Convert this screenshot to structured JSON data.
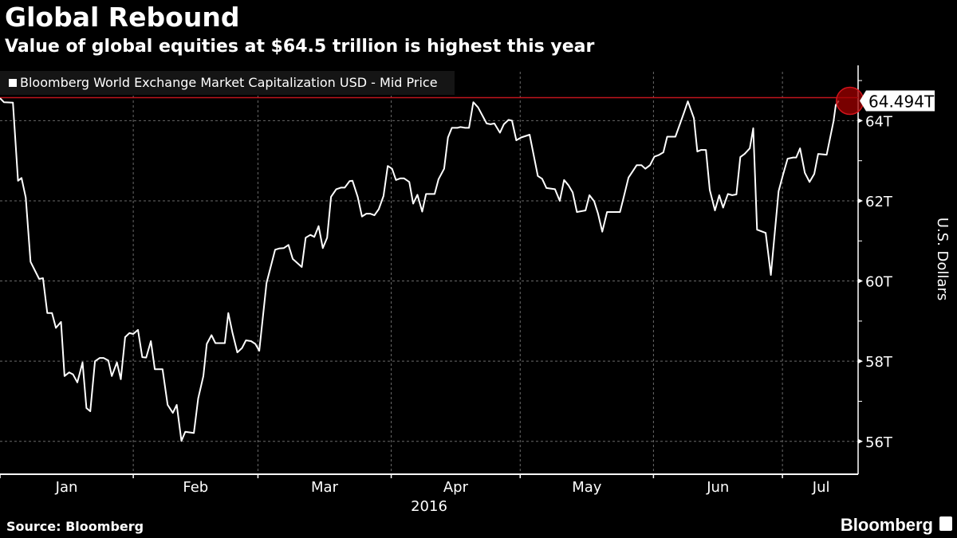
{
  "header": {
    "title": "Global Rebound",
    "subtitle": "Value of global equities at $64.5 trillion is highest this year"
  },
  "footer": {
    "source": "Source: Bloomberg",
    "logo": "Bloomberg"
  },
  "colors": {
    "background": "#000000",
    "line": "#ffffff",
    "highlight": "#c0141c",
    "legend_bg": "#151515",
    "grid": "#666666"
  },
  "chart_data": {
    "type": "line",
    "title": "Global Rebound",
    "subtitle": "Value of global equities at $64.5 trillion is highest this year",
    "legend": [
      "Bloomberg World Exchange Market Capitalization USD - Mid Price"
    ],
    "legend_placement": "top-left",
    "xlabel": "2016",
    "ylabel": "U.S. Dollars",
    "x_unit": "day of year 2016 (0 = Jan 1)",
    "xlim": [
      0,
      199.6
    ],
    "ylim": [
      55.18,
      65.22
    ],
    "month_starts": [
      0,
      31,
      60,
      91,
      121,
      152,
      182
    ],
    "x_tick_labels": [
      "Jan",
      "Feb",
      "Mar",
      "Apr",
      "May",
      "Jun",
      "Jul"
    ],
    "x_tick_label_days": [
      15.5,
      45.5,
      75.5,
      106,
      136.5,
      167,
      191
    ],
    "y_ticks": [
      56,
      58,
      60,
      62,
      64
    ],
    "y_tick_labels": [
      "56T",
      "58T",
      "60T",
      "62T",
      "64T"
    ],
    "y_minor_ticks": [
      57,
      59,
      61,
      63,
      65
    ],
    "grid": true,
    "last_value": 64.494,
    "last_value_label": "64.494T",
    "series": [
      {
        "name": "Bloomberg World Exchange Market Capitalization USD - Mid Price",
        "points": [
          [
            0.0,
            64.56
          ],
          [
            0.9,
            64.46
          ],
          [
            3.0,
            64.45
          ],
          [
            4.2,
            62.5
          ],
          [
            5.0,
            62.57
          ],
          [
            6.0,
            62.08
          ],
          [
            7.1,
            60.48
          ],
          [
            9.1,
            60.05
          ],
          [
            10.0,
            60.07
          ],
          [
            11.0,
            59.2
          ],
          [
            12.1,
            59.2
          ],
          [
            13.0,
            58.83
          ],
          [
            14.2,
            58.98
          ],
          [
            15.0,
            57.63
          ],
          [
            16.1,
            57.72
          ],
          [
            17.0,
            57.67
          ],
          [
            18.0,
            57.47
          ],
          [
            19.2,
            57.97
          ],
          [
            20.1,
            56.83
          ],
          [
            21.0,
            56.75
          ],
          [
            22.1,
            58.0
          ],
          [
            23.2,
            58.08
          ],
          [
            24.1,
            58.08
          ],
          [
            25.2,
            58.02
          ],
          [
            26.0,
            57.63
          ],
          [
            27.2,
            57.97
          ],
          [
            28.1,
            57.55
          ],
          [
            29.1,
            58.6
          ],
          [
            30.1,
            58.7
          ],
          [
            31.0,
            58.68
          ],
          [
            32.1,
            58.78
          ],
          [
            33.1,
            58.1
          ],
          [
            34.0,
            58.09
          ],
          [
            35.1,
            58.5
          ],
          [
            36.0,
            57.8
          ],
          [
            37.8,
            57.8
          ],
          [
            39.0,
            56.91
          ],
          [
            40.2,
            56.71
          ],
          [
            41.1,
            56.91
          ],
          [
            42.2,
            56.01
          ],
          [
            43.1,
            56.24
          ],
          [
            45.1,
            56.21
          ],
          [
            46.1,
            57.07
          ],
          [
            47.3,
            57.63
          ],
          [
            48.1,
            58.43
          ],
          [
            49.2,
            58.65
          ],
          [
            50.1,
            58.45
          ],
          [
            52.3,
            58.45
          ],
          [
            53.1,
            59.2
          ],
          [
            54.1,
            58.7
          ],
          [
            55.2,
            58.22
          ],
          [
            56.3,
            58.33
          ],
          [
            57.2,
            58.52
          ],
          [
            58.4,
            58.5
          ],
          [
            59.4,
            58.43
          ],
          [
            60.3,
            58.26
          ],
          [
            62.0,
            59.95
          ],
          [
            64.0,
            60.78
          ],
          [
            64.9,
            60.81
          ],
          [
            66.0,
            60.82
          ],
          [
            67.1,
            60.9
          ],
          [
            68.1,
            60.55
          ],
          [
            70.2,
            60.35
          ],
          [
            71.1,
            61.08
          ],
          [
            72.2,
            61.15
          ],
          [
            73.1,
            61.1
          ],
          [
            74.1,
            61.37
          ],
          [
            75.1,
            60.82
          ],
          [
            76.1,
            61.08
          ],
          [
            77.0,
            62.1
          ],
          [
            78.2,
            62.29
          ],
          [
            79.3,
            62.33
          ],
          [
            80.2,
            62.33
          ],
          [
            81.3,
            62.49
          ],
          [
            82.0,
            62.5
          ],
          [
            83.2,
            62.1
          ],
          [
            84.2,
            61.61
          ],
          [
            85.2,
            61.68
          ],
          [
            86.1,
            61.68
          ],
          [
            87.1,
            61.64
          ],
          [
            88.1,
            61.79
          ],
          [
            89.2,
            62.12
          ],
          [
            90.2,
            62.87
          ],
          [
            91.2,
            62.8
          ],
          [
            92.1,
            62.52
          ],
          [
            93.1,
            62.56
          ],
          [
            94.0,
            62.56
          ],
          [
            95.2,
            62.47
          ],
          [
            96.1,
            61.93
          ],
          [
            97.1,
            62.15
          ],
          [
            98.2,
            61.73
          ],
          [
            99.1,
            62.17
          ],
          [
            101.1,
            62.17
          ],
          [
            102.0,
            62.54
          ],
          [
            103.3,
            62.8
          ],
          [
            104.2,
            63.58
          ],
          [
            105.1,
            63.82
          ],
          [
            106.4,
            63.82
          ],
          [
            107.1,
            63.84
          ],
          [
            108.2,
            63.82
          ],
          [
            109.1,
            63.82
          ],
          [
            110.1,
            64.46
          ],
          [
            111.2,
            64.33
          ],
          [
            113.2,
            63.93
          ],
          [
            114.1,
            63.91
          ],
          [
            115.0,
            63.93
          ],
          [
            116.3,
            63.7
          ],
          [
            117.2,
            63.91
          ],
          [
            118.3,
            64.02
          ],
          [
            119.1,
            64.0
          ],
          [
            120.1,
            63.51
          ],
          [
            121.2,
            63.58
          ],
          [
            123.2,
            63.65
          ],
          [
            125.1,
            62.62
          ],
          [
            126.1,
            62.55
          ],
          [
            127.1,
            62.32
          ],
          [
            129.1,
            62.29
          ],
          [
            130.2,
            62.0
          ],
          [
            131.2,
            62.52
          ],
          [
            132.2,
            62.39
          ],
          [
            133.2,
            62.21
          ],
          [
            134.2,
            61.72
          ],
          [
            136.2,
            61.76
          ],
          [
            137.1,
            62.14
          ],
          [
            138.2,
            61.99
          ],
          [
            139.1,
            61.68
          ],
          [
            140.1,
            61.23
          ],
          [
            141.2,
            61.72
          ],
          [
            144.2,
            61.72
          ],
          [
            145.2,
            62.14
          ],
          [
            146.2,
            62.58
          ],
          [
            147.2,
            62.74
          ],
          [
            148.1,
            62.89
          ],
          [
            149.2,
            62.89
          ],
          [
            150.1,
            62.8
          ],
          [
            151.2,
            62.89
          ],
          [
            152.2,
            63.1
          ],
          [
            153.2,
            63.14
          ],
          [
            154.3,
            63.21
          ],
          [
            155.2,
            63.6
          ],
          [
            157.1,
            63.6
          ],
          [
            158.3,
            63.96
          ],
          [
            159.2,
            64.23
          ],
          [
            160.0,
            64.48
          ],
          [
            161.4,
            64.06
          ],
          [
            162.2,
            63.23
          ],
          [
            163.1,
            63.27
          ],
          [
            164.2,
            63.27
          ],
          [
            165.1,
            62.27
          ],
          [
            166.3,
            61.76
          ],
          [
            167.3,
            62.14
          ],
          [
            168.2,
            61.83
          ],
          [
            169.3,
            62.17
          ],
          [
            170.3,
            62.14
          ],
          [
            171.3,
            62.16
          ],
          [
            172.2,
            63.09
          ],
          [
            173.2,
            63.17
          ],
          [
            174.4,
            63.31
          ],
          [
            175.2,
            63.81
          ],
          [
            176.1,
            61.28
          ],
          [
            178.1,
            61.2
          ],
          [
            179.3,
            60.15
          ],
          [
            181.1,
            62.24
          ],
          [
            182.1,
            62.64
          ],
          [
            183.2,
            63.05
          ],
          [
            184.5,
            63.08
          ],
          [
            185.2,
            63.08
          ],
          [
            186.1,
            63.31
          ],
          [
            187.2,
            62.7
          ],
          [
            188.3,
            62.47
          ],
          [
            189.4,
            62.67
          ],
          [
            190.3,
            63.17
          ],
          [
            192.3,
            63.15
          ],
          [
            193.9,
            64.0
          ],
          [
            194.4,
            64.39
          ],
          [
            195.1,
            64.494
          ]
        ]
      }
    ]
  }
}
